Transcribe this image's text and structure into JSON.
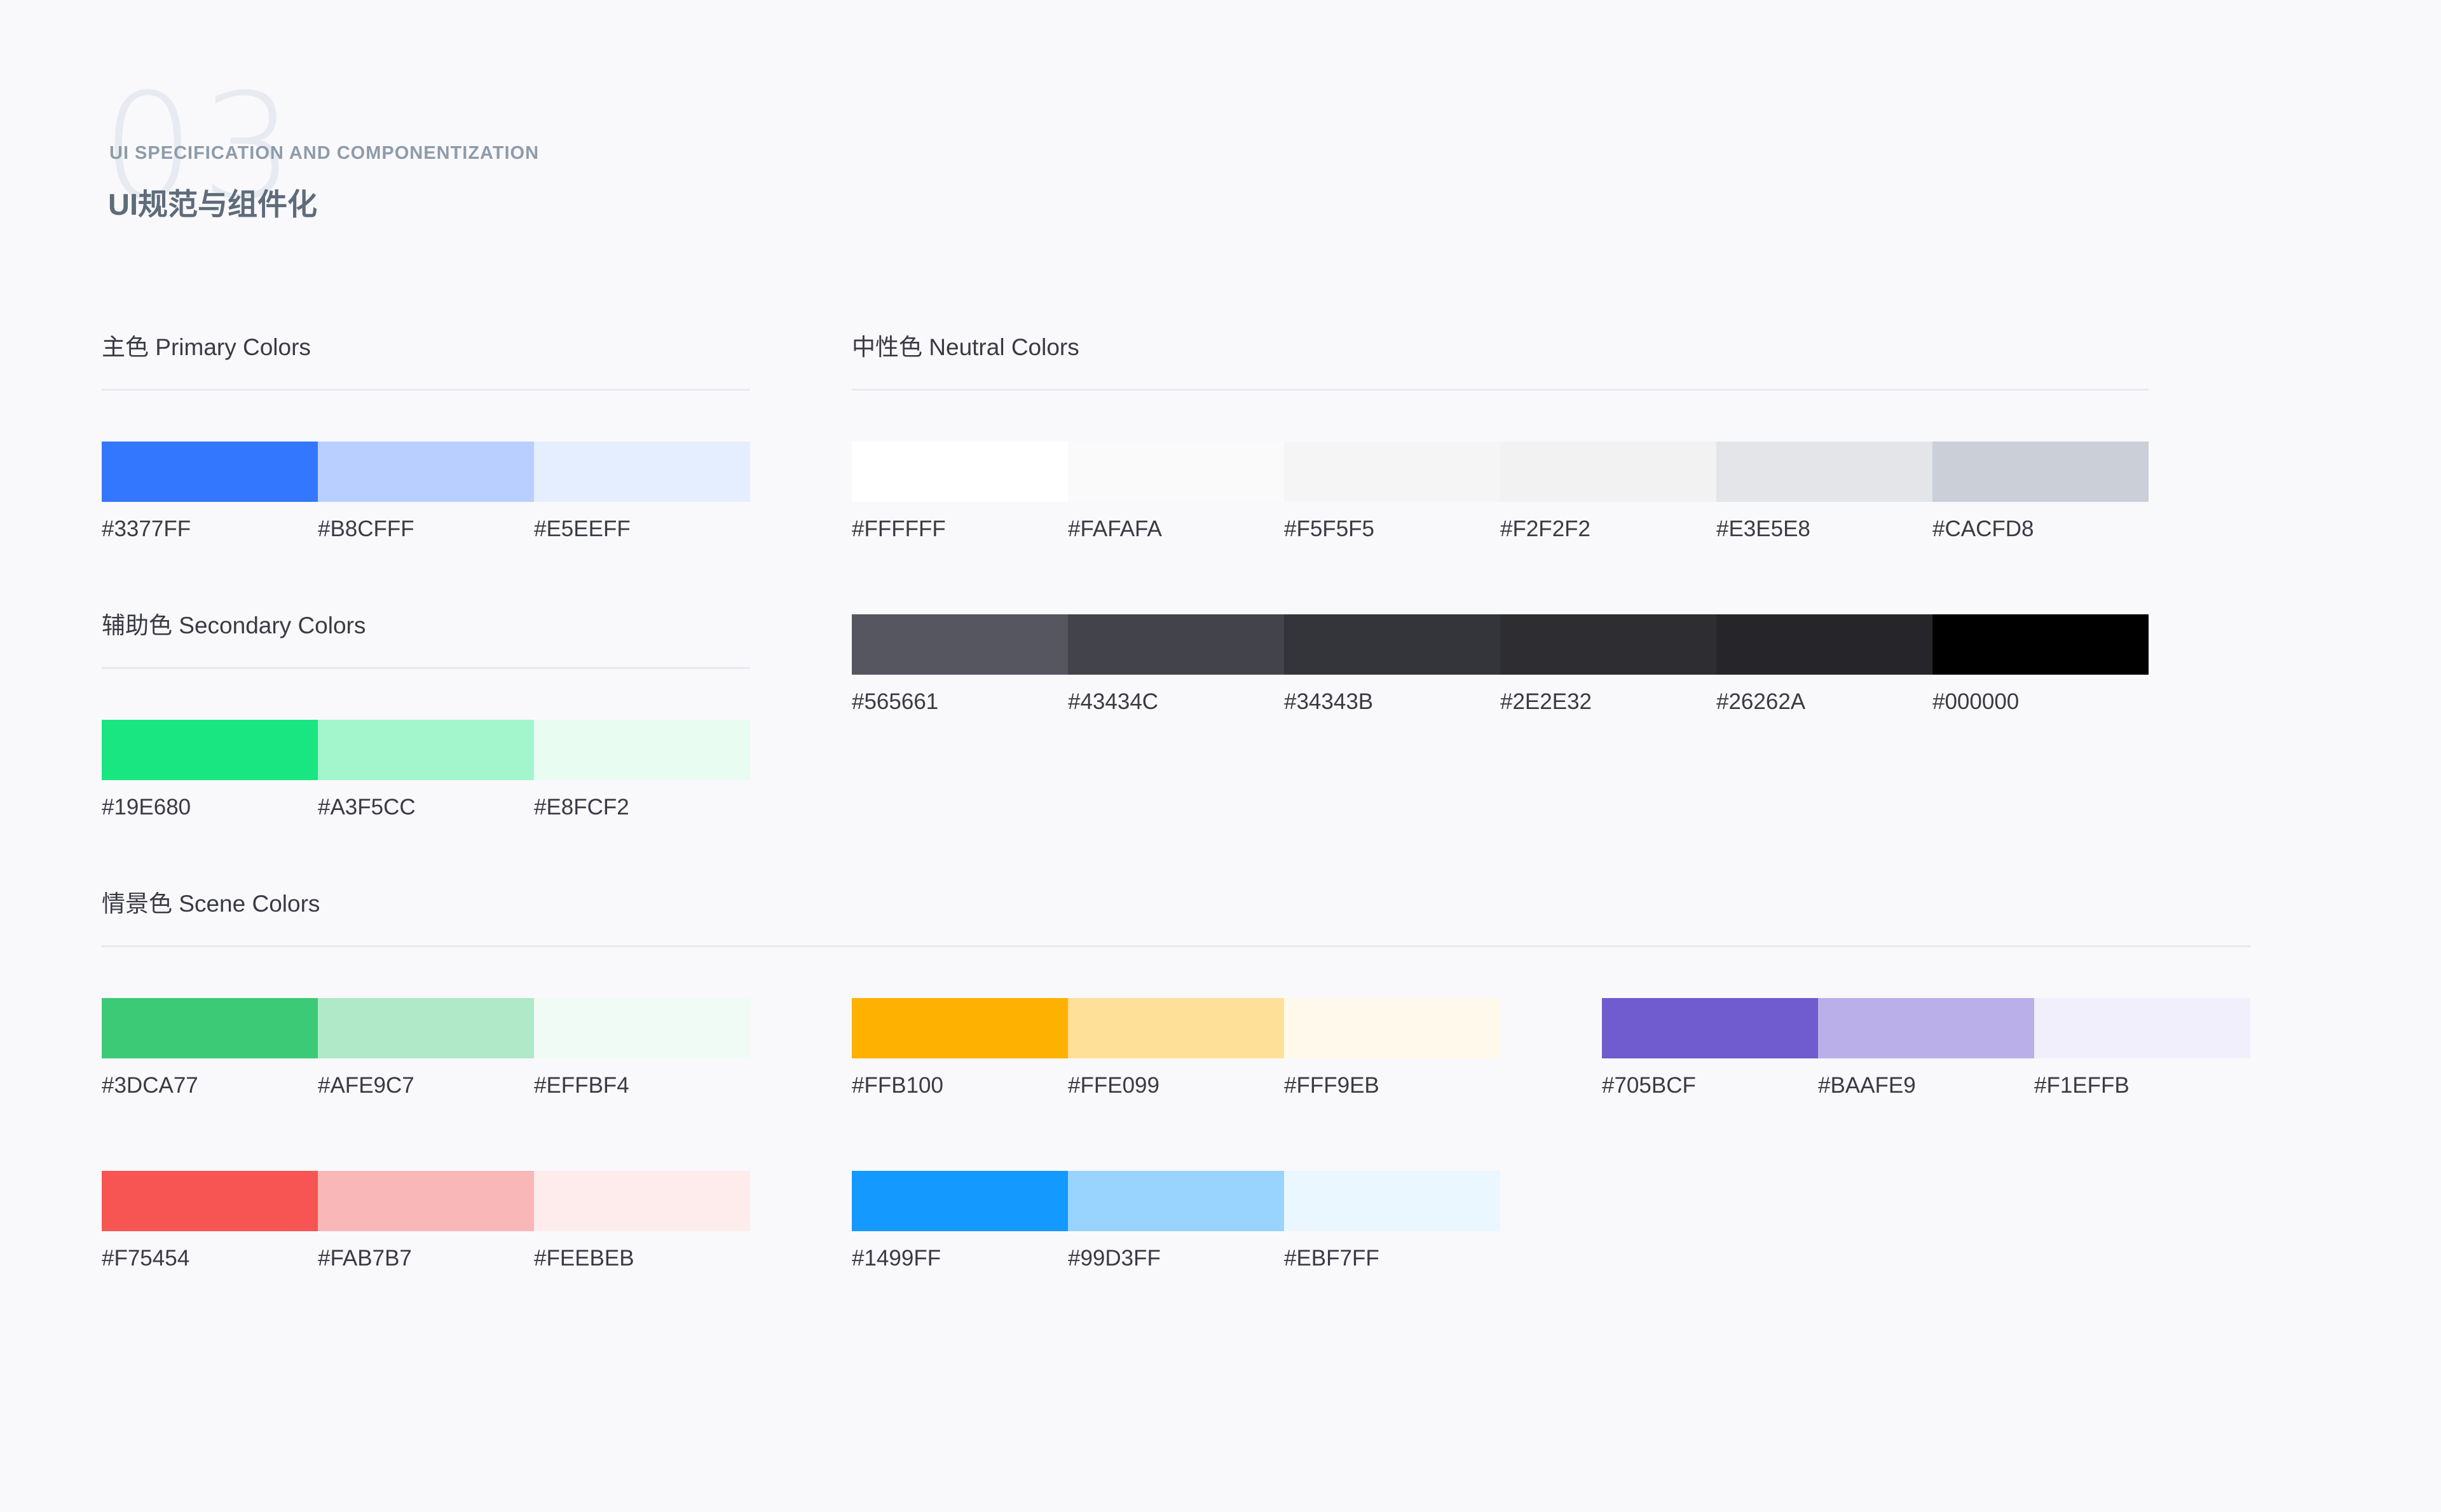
{
  "header": {
    "number": "03",
    "subtitle_en": "UI SPECIFICATION AND COMPONENTIZATION",
    "title_cn": "UI规范与组件化"
  },
  "primary": {
    "title": "主色  Primary Colors",
    "swatches": [
      {
        "hex": "#3377FF"
      },
      {
        "hex": "#B8CFFF"
      },
      {
        "hex": "#E5EEFF"
      }
    ]
  },
  "secondary": {
    "title": "辅助色  Secondary Colors",
    "swatches": [
      {
        "hex": "#19E680"
      },
      {
        "hex": "#A3F5CC"
      },
      {
        "hex": "#E8FCF2"
      }
    ]
  },
  "neutral": {
    "title": "中性色 Neutral Colors",
    "light": [
      {
        "hex": "#FFFFFF"
      },
      {
        "hex": "#FAFAFA"
      },
      {
        "hex": "#F5F5F5"
      },
      {
        "hex": "#F2F2F2"
      },
      {
        "hex": "#E3E5E8"
      },
      {
        "hex": "#CACFD8"
      }
    ],
    "dark": [
      {
        "hex": "#565661"
      },
      {
        "hex": "#43434C"
      },
      {
        "hex": "#34343B"
      },
      {
        "hex": "#2E2E32"
      },
      {
        "hex": "#26262A"
      },
      {
        "hex": "#000000"
      }
    ]
  },
  "scene": {
    "title": "情景色 Scene Colors",
    "green": [
      {
        "hex": "#3DCA77"
      },
      {
        "hex": "#AFE9C7"
      },
      {
        "hex": "#EFFBF4"
      }
    ],
    "yellow": [
      {
        "hex": "#FFB100"
      },
      {
        "hex": "#FFE099"
      },
      {
        "hex": "#FFF9EB"
      }
    ],
    "purple": [
      {
        "hex": "#705BCF"
      },
      {
        "hex": "#BAAFE9"
      },
      {
        "hex": "#F1EFFB"
      }
    ],
    "red": [
      {
        "hex": "#F75454"
      },
      {
        "hex": "#FAB7B7"
      },
      {
        "hex": "#FEEBEB"
      }
    ],
    "blue": [
      {
        "hex": "#1499FF"
      },
      {
        "hex": "#99D3FF"
      },
      {
        "hex": "#EBF7FF"
      }
    ]
  }
}
